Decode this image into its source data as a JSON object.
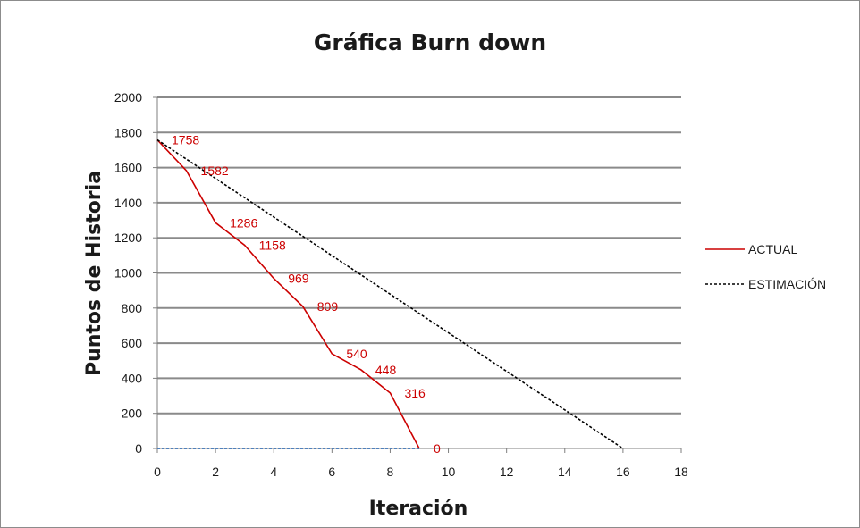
{
  "chart_data": {
    "type": "line",
    "title": "Gráfica Burn down",
    "xlabel": "Iteración",
    "ylabel": "Puntos de Historia",
    "xlim": [
      0,
      18
    ],
    "ylim": [
      0,
      2000
    ],
    "xticks": [
      0,
      2,
      4,
      6,
      8,
      10,
      12,
      14,
      16,
      18
    ],
    "yticks": [
      0,
      200,
      400,
      600,
      800,
      1000,
      1200,
      1400,
      1600,
      1800,
      2000
    ],
    "grid": "horizontal",
    "legend_position": "right",
    "series": [
      {
        "name": "ACTUAL",
        "color": "#cc0000",
        "style": "solid",
        "x": [
          0,
          1,
          2,
          3,
          4,
          5,
          6,
          7,
          8,
          9
        ],
        "y": [
          1758,
          1582,
          1286,
          1158,
          969,
          809,
          540,
          448,
          316,
          0
        ],
        "labels": [
          "1758",
          "1582",
          "1286",
          "1158",
          "969",
          "809",
          "540",
          "448",
          "316",
          "0"
        ]
      },
      {
        "name": "ESTIMACIÓN",
        "color": "#000000",
        "style": "dotted",
        "x": [
          0,
          16
        ],
        "y": [
          1758,
          0
        ]
      }
    ],
    "baseline": {
      "color": "#4f81bd",
      "style": "dotted",
      "x": [
        0,
        9
      ],
      "y": [
        0,
        0
      ]
    }
  }
}
